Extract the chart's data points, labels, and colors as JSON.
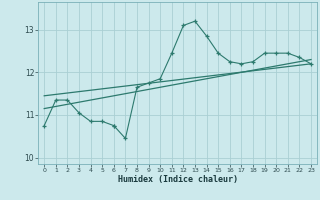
{
  "xlabel": "Humidex (Indice chaleur)",
  "bg_color": "#cce9ec",
  "line_color": "#2d7a6e",
  "grid_color": "#aacfd4",
  "xlim": [
    -0.5,
    23.5
  ],
  "ylim": [
    9.85,
    13.65
  ],
  "yticks": [
    10,
    11,
    12,
    13
  ],
  "xticks": [
    0,
    1,
    2,
    3,
    4,
    5,
    6,
    7,
    8,
    9,
    10,
    11,
    12,
    13,
    14,
    15,
    16,
    17,
    18,
    19,
    20,
    21,
    22,
    23
  ],
  "data_x": [
    0,
    1,
    2,
    3,
    4,
    5,
    6,
    6,
    7,
    8,
    9,
    10,
    11,
    12,
    13,
    14,
    15,
    16,
    17,
    18,
    19,
    20,
    21,
    22,
    23
  ],
  "data_y": [
    10.75,
    11.35,
    11.35,
    11.05,
    10.85,
    10.85,
    10.75,
    10.75,
    10.45,
    11.65,
    11.75,
    11.85,
    12.45,
    13.1,
    13.2,
    12.85,
    12.45,
    12.25,
    12.2,
    12.25,
    12.45,
    12.45,
    12.45,
    12.35,
    12.2
  ],
  "trend_x": [
    0,
    23
  ],
  "trend_y": [
    11.15,
    12.3
  ],
  "trend2_x": [
    0,
    23
  ],
  "trend2_y": [
    11.45,
    12.2
  ]
}
